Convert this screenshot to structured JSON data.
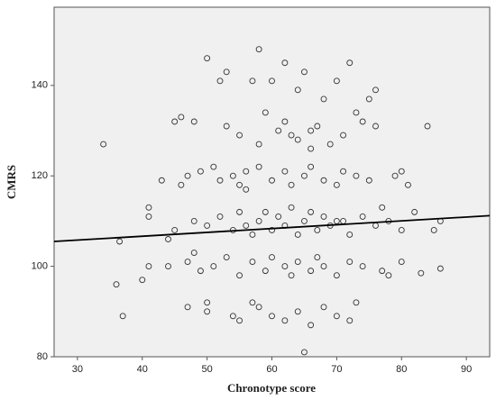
{
  "chart_data": {
    "type": "scatter",
    "x_label": "Chronotype score",
    "y_label": "CMRS",
    "xlim": [
      26.4,
      93.6
    ],
    "ylim": [
      80,
      157.3
    ],
    "xticks": [
      30,
      40,
      50,
      60,
      70,
      80,
      90
    ],
    "yticks": [
      80,
      100,
      120,
      140
    ],
    "color": "#333333",
    "background": "#f0f0f0",
    "x": [
      34,
      36,
      36.5,
      37,
      40,
      41,
      41,
      41,
      43,
      44,
      45,
      46,
      47,
      47,
      48,
      48,
      50,
      50,
      51,
      52,
      53,
      53,
      55,
      55,
      56,
      57,
      58,
      58,
      59,
      60,
      61,
      62,
      63,
      64,
      65,
      65,
      66,
      67,
      68,
      70,
      71,
      72,
      72,
      73,
      74,
      75,
      76,
      76,
      77,
      78,
      80,
      81,
      82,
      83,
      84,
      85,
      86,
      86,
      45,
      48,
      50,
      52,
      54,
      55,
      56,
      57,
      58,
      59,
      60,
      61,
      62,
      63,
      64,
      65,
      66,
      67,
      68,
      69,
      70,
      72,
      74,
      76,
      78,
      80,
      44,
      47,
      49,
      51,
      53,
      55,
      57,
      59,
      60,
      62,
      63,
      64,
      66,
      67,
      68,
      70,
      72,
      74,
      77,
      80,
      46,
      49,
      52,
      54,
      56,
      58,
      60,
      62,
      63,
      65,
      66,
      68,
      70,
      71,
      73,
      75,
      79,
      50,
      54,
      57,
      60,
      62,
      64,
      66,
      68,
      70,
      73,
      55,
      58,
      62,
      64,
      66,
      69,
      71
    ],
    "y": [
      127,
      96,
      105.5,
      89,
      97,
      100,
      111,
      113,
      119,
      106,
      132,
      133,
      120,
      91,
      103,
      132,
      146,
      92,
      122,
      141,
      143,
      131,
      118,
      88,
      121,
      141,
      148,
      91,
      134,
      141,
      130,
      145,
      129,
      139,
      143,
      81,
      126,
      131,
      137,
      141,
      110,
      145,
      88,
      134,
      132,
      137,
      139,
      131,
      113,
      98,
      121,
      118,
      112,
      98.5,
      131,
      108,
      99.5,
      110,
      108,
      110,
      109,
      111,
      108,
      112,
      109,
      107,
      110,
      112,
      108,
      111,
      109,
      113,
      107,
      110,
      112,
      108,
      111,
      109,
      110,
      107,
      111,
      109,
      110,
      108,
      100,
      101,
      99,
      100,
      102,
      98,
      101,
      99,
      102,
      100,
      98,
      101,
      99,
      102,
      100,
      98,
      101,
      100,
      99,
      101,
      118,
      121,
      119,
      120,
      117,
      122,
      119,
      121,
      118,
      120,
      122,
      119,
      118,
      121,
      120,
      119,
      120,
      90,
      89,
      92,
      89,
      88,
      90,
      87,
      91,
      89,
      92,
      129,
      127,
      132,
      128,
      130,
      127,
      129
    ],
    "trend_line": {
      "x": [
        26.4,
        93.6
      ],
      "y": [
        105.5,
        111.2
      ],
      "color": "#000000"
    }
  }
}
